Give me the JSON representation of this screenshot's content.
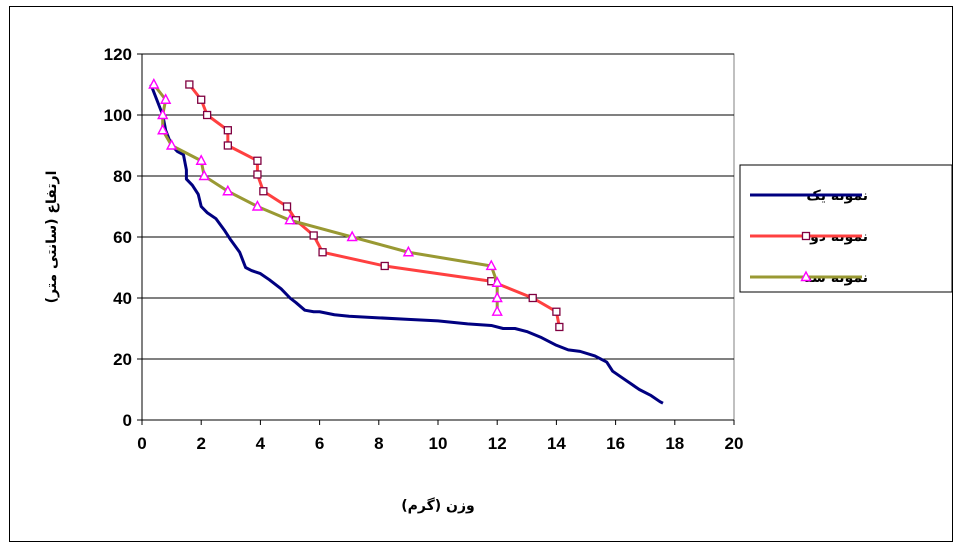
{
  "chart_data": {
    "type": "line",
    "xlabel": "وزن (گرم)",
    "ylabel": "ارتفاع (سانتی متر)",
    "xlim": [
      0,
      20
    ],
    "ylim": [
      0,
      120
    ],
    "x_ticks": [
      "0",
      "2",
      "4",
      "6",
      "8",
      "10",
      "12",
      "14",
      "16",
      "18",
      "20"
    ],
    "y_ticks": [
      "0",
      "20",
      "40",
      "60",
      "80",
      "100",
      "120"
    ],
    "grid": "horizontal",
    "legend_position": "right",
    "series": [
      {
        "name": "نمونه یک",
        "color": "#000080",
        "marker": "none",
        "points": [
          [
            0.3,
            110
          ],
          [
            0.5,
            105
          ],
          [
            0.7,
            100
          ],
          [
            0.8,
            95
          ],
          [
            1.0,
            90
          ],
          [
            1.2,
            88
          ],
          [
            1.4,
            87
          ],
          [
            1.5,
            82
          ],
          [
            1.5,
            79
          ],
          [
            1.7,
            77
          ],
          [
            1.9,
            74
          ],
          [
            2.0,
            70
          ],
          [
            2.2,
            68
          ],
          [
            2.5,
            66
          ],
          [
            2.8,
            62
          ],
          [
            3.0,
            59
          ],
          [
            3.3,
            55
          ],
          [
            3.5,
            50
          ],
          [
            3.7,
            49
          ],
          [
            4.0,
            48
          ],
          [
            4.3,
            46
          ],
          [
            4.7,
            43
          ],
          [
            5.0,
            40
          ],
          [
            5.2,
            38.5
          ],
          [
            5.5,
            36
          ],
          [
            5.8,
            35.5
          ],
          [
            6.0,
            35.5
          ],
          [
            6.5,
            34.5
          ],
          [
            7.0,
            34
          ],
          [
            8.0,
            33.5
          ],
          [
            9.0,
            33
          ],
          [
            10.0,
            32.5
          ],
          [
            11.0,
            31.5
          ],
          [
            11.8,
            31
          ],
          [
            12.2,
            30
          ],
          [
            12.6,
            30
          ],
          [
            13.0,
            29
          ],
          [
            13.5,
            27
          ],
          [
            14.0,
            24.5
          ],
          [
            14.4,
            23
          ],
          [
            14.8,
            22.5
          ],
          [
            15.3,
            21
          ],
          [
            15.7,
            19
          ],
          [
            15.9,
            16
          ],
          [
            16.2,
            14
          ],
          [
            16.5,
            12
          ],
          [
            16.8,
            10
          ],
          [
            17.2,
            8
          ],
          [
            17.5,
            6
          ],
          [
            17.6,
            5.5
          ]
        ]
      },
      {
        "name": "نمونه دو",
        "color": "#ff4040",
        "marker": "square",
        "marker_color": "#800040",
        "points": [
          [
            1.6,
            110
          ],
          [
            2.0,
            105
          ],
          [
            2.2,
            100
          ],
          [
            2.9,
            95
          ],
          [
            2.9,
            90
          ],
          [
            3.9,
            85
          ],
          [
            3.9,
            80.5
          ],
          [
            4.1,
            75
          ],
          [
            4.9,
            70
          ],
          [
            5.2,
            65.5
          ],
          [
            5.8,
            60.5
          ],
          [
            6.1,
            55
          ],
          [
            8.2,
            50.5
          ],
          [
            11.8,
            45.5
          ],
          [
            13.2,
            40
          ],
          [
            14.0,
            35.5
          ],
          [
            14.1,
            30.5
          ]
        ]
      },
      {
        "name": "نمونه سه",
        "color": "#999933",
        "marker": "triangle",
        "marker_color": "#ff00ff",
        "points": [
          [
            0.4,
            110
          ],
          [
            0.8,
            105
          ],
          [
            0.7,
            100
          ],
          [
            0.7,
            95
          ],
          [
            1.0,
            90
          ],
          [
            2.0,
            85
          ],
          [
            2.1,
            80
          ],
          [
            2.9,
            75
          ],
          [
            3.9,
            70
          ],
          [
            5.0,
            65.5
          ],
          [
            7.1,
            60
          ],
          [
            9.0,
            55
          ],
          [
            11.8,
            50.5
          ],
          [
            12.0,
            45
          ],
          [
            12.0,
            40
          ],
          [
            12.0,
            35.5
          ]
        ]
      }
    ]
  }
}
